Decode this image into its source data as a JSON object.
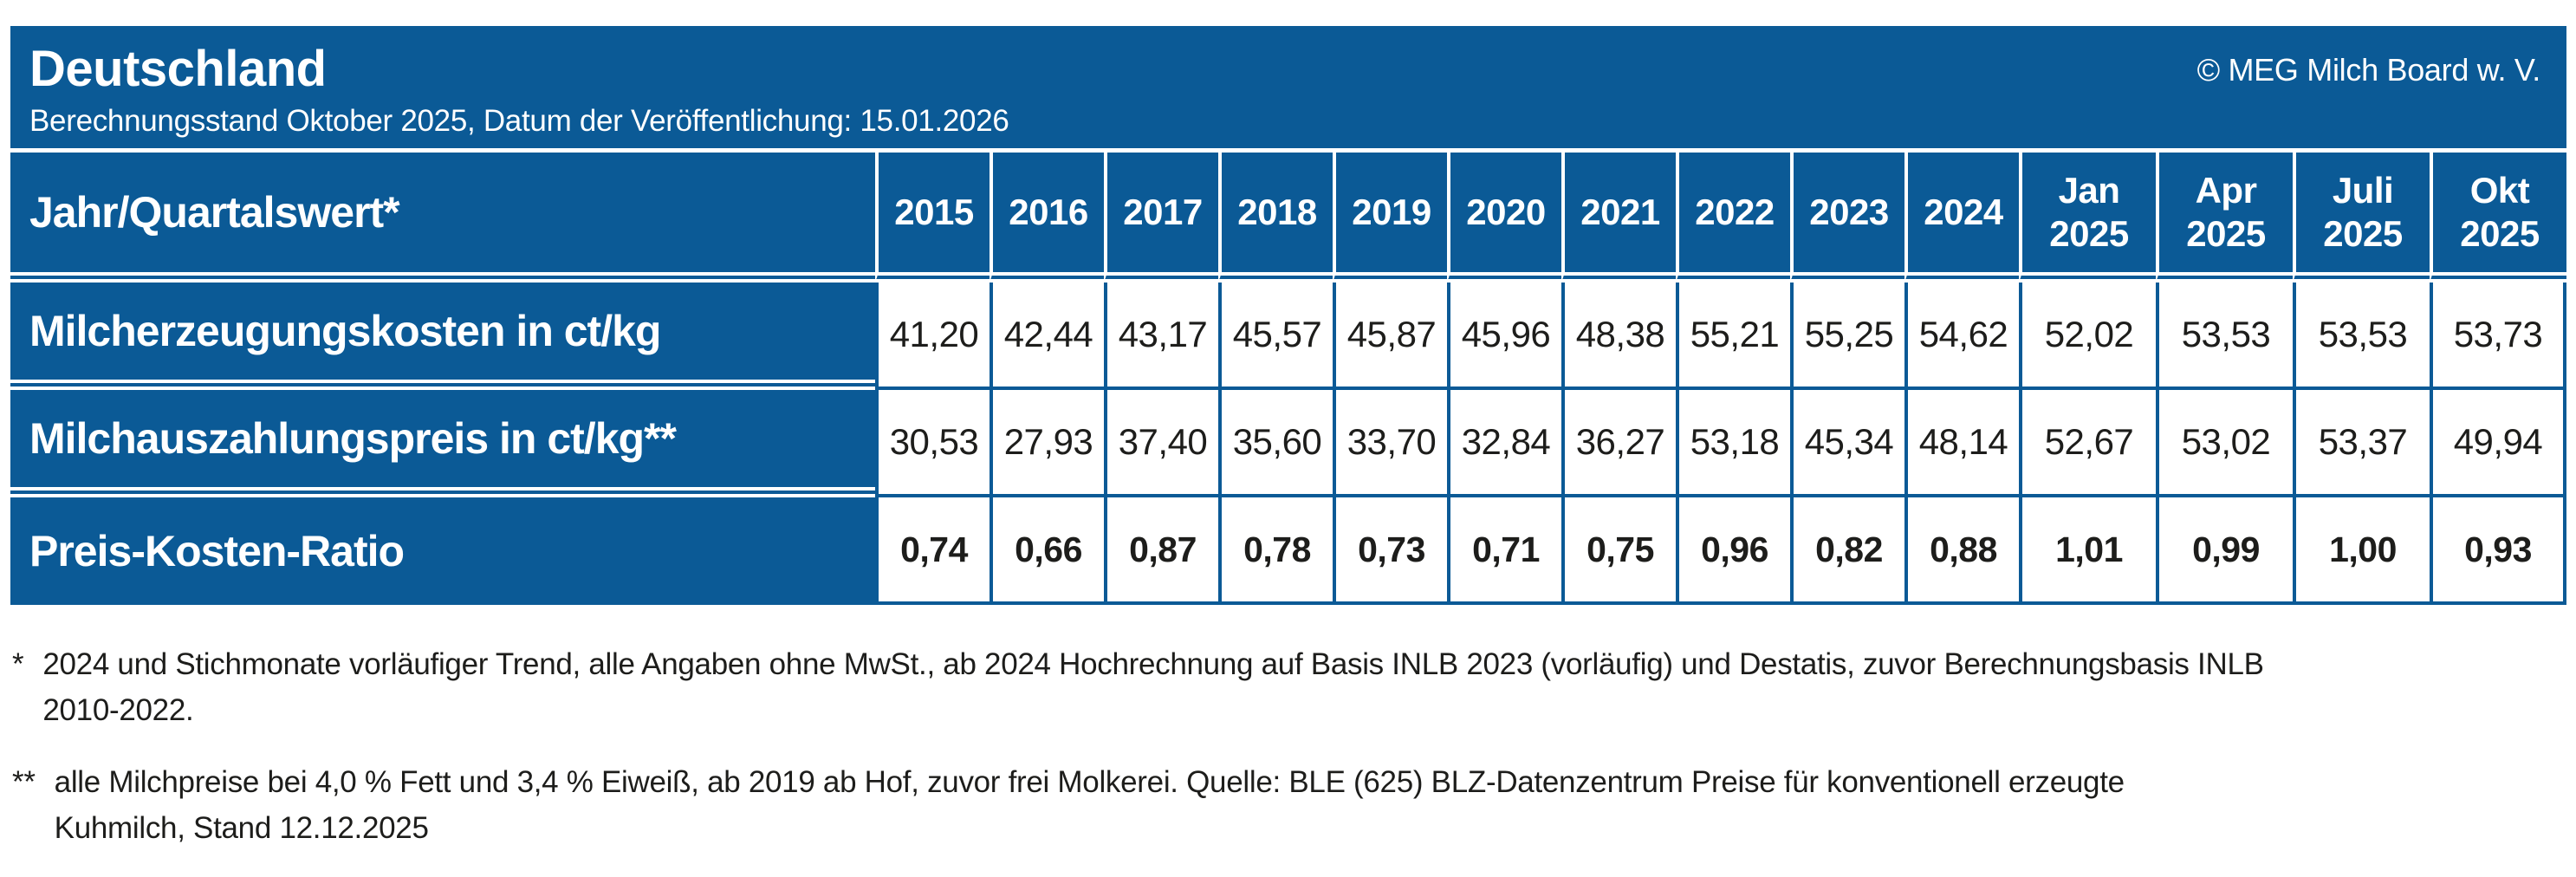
{
  "header": {
    "region": "Deutschland",
    "subtitle": "Berechnungsstand Oktober 2025, Datum der Veröffentlichung: 15.01.2026",
    "copyright": "© MEG Milch Board w. V."
  },
  "table": {
    "corner_label": "Jahr/Quartalswert*",
    "columns": [
      "2015",
      "2016",
      "2017",
      "2018",
      "2019",
      "2020",
      "2021",
      "2022",
      "2023",
      "2024",
      "Jan 2025",
      "Apr 2025",
      "Juli 2025",
      "Okt 2025"
    ],
    "rows": [
      {
        "label": "Milcherzeugungskosten in ct/kg",
        "bold": false,
        "values": [
          "41,20",
          "42,44",
          "43,17",
          "45,57",
          "45,87",
          "45,96",
          "48,38",
          "55,21",
          "55,25",
          "54,62",
          "52,02",
          "53,53",
          "53,53",
          "53,73"
        ]
      },
      {
        "label": "Milchauszahlungspreis in ct/kg**",
        "bold": false,
        "values": [
          "30,53",
          "27,93",
          "37,40",
          "35,60",
          "33,70",
          "32,84",
          "36,27",
          "53,18",
          "45,34",
          "48,14",
          "52,67",
          "53,02",
          "53,37",
          "49,94"
        ]
      },
      {
        "label": "Preis-Kosten-Ratio",
        "bold": true,
        "values": [
          "0,74",
          "0,66",
          "0,87",
          "0,78",
          "0,73",
          "0,71",
          "0,75",
          "0,96",
          "0,82",
          "0,88",
          "1,01",
          "0,99",
          "1,00",
          "0,93"
        ]
      }
    ]
  },
  "footnotes": [
    {
      "marker": "*",
      "lines": [
        "2024 und Stichmonate vorläufiger Trend, alle Angaben ohne MwSt., ab 2024 Hochrechnung auf Basis INLB 2023 (vorläufig) und Destatis, zuvor Berechnungsbasis INLB",
        "2010-2022."
      ]
    },
    {
      "marker": "**",
      "lines": [
        "alle Milchpreise bei 4,0 % Fett und 3,4 % Eiweiß, ab 2019 ab Hof, zuvor frei Molkerei. Quelle: BLE (625) BLZ-Datenzentrum Preise für konventionell erzeugte",
        "Kuhmilch, Stand 12.12.2025"
      ]
    }
  ],
  "colors": {
    "accent_blue": "#0b5a96",
    "text_dark": "#1d1d1b",
    "cell_white": "#ffffff"
  },
  "chart_data": {
    "type": "table",
    "title": "Deutschland — Berechnungsstand Oktober 2025, Datum der Veröffentlichung: 15.01.2026",
    "categories": [
      "2015",
      "2016",
      "2017",
      "2018",
      "2019",
      "2020",
      "2021",
      "2022",
      "2023",
      "2024",
      "Jan 2025",
      "Apr 2025",
      "Juli 2025",
      "Okt 2025"
    ],
    "series": [
      {
        "name": "Milcherzeugungskosten in ct/kg",
        "values": [
          41.2,
          42.44,
          43.17,
          45.57,
          45.87,
          45.96,
          48.38,
          55.21,
          55.25,
          54.62,
          52.02,
          53.53,
          53.53,
          53.73
        ]
      },
      {
        "name": "Milchauszahlungspreis in ct/kg",
        "values": [
          30.53,
          27.93,
          37.4,
          35.6,
          33.7,
          32.84,
          36.27,
          53.18,
          45.34,
          48.14,
          52.67,
          53.02,
          53.37,
          49.94
        ]
      },
      {
        "name": "Preis-Kosten-Ratio",
        "values": [
          0.74,
          0.66,
          0.87,
          0.78,
          0.73,
          0.71,
          0.75,
          0.96,
          0.82,
          0.88,
          1.01,
          0.99,
          1.0,
          0.93
        ]
      }
    ],
    "legend_position": "none",
    "grid": true
  }
}
